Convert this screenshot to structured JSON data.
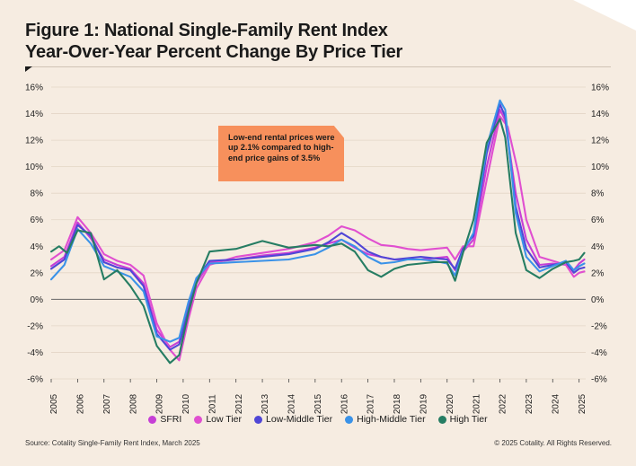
{
  "title": {
    "line1": "Figure 1: National Single-Family Rent Index",
    "line2": "Year-Over-Year Percent Change By Price Tier"
  },
  "callout": "Low-end rental prices were up 2.1% compared to high-end price gains of 3.5%",
  "source": "Source: Cotality Single-Family Rent Index, March 2025",
  "copyright": "© 2025 Cotality. All Rights Reserved.",
  "chart_data": {
    "type": "line",
    "ylim": [
      -6,
      16
    ],
    "yticks": [
      -6,
      -4,
      -2,
      0,
      2,
      4,
      6,
      8,
      10,
      12,
      14,
      16
    ],
    "ytick_labels": [
      "-6%",
      "-4%",
      "-2%",
      "0%",
      "2%",
      "4%",
      "6%",
      "8%",
      "10%",
      "12%",
      "14%",
      "16%"
    ],
    "xlim": [
      2005,
      2025.25
    ],
    "xticks": [
      2005,
      2006,
      2007,
      2008,
      2009,
      2010,
      2011,
      2012,
      2013,
      2014,
      2015,
      2016,
      2017,
      2018,
      2019,
      2020,
      2021,
      2022,
      2023,
      2024,
      2025
    ],
    "grid": "horizontal",
    "legend_position": "bottom",
    "series": [
      {
        "name": "SFRI",
        "color": "#c63fd6",
        "points": [
          [
            2005,
            2.5
          ],
          [
            2005.5,
            3.2
          ],
          [
            2006,
            5.8
          ],
          [
            2006.5,
            4.6
          ],
          [
            2007,
            3.0
          ],
          [
            2007.5,
            2.6
          ],
          [
            2008,
            2.3
          ],
          [
            2008.5,
            1.2
          ],
          [
            2009,
            -2.3
          ],
          [
            2009.5,
            -3.6
          ],
          [
            2009.85,
            -3.2
          ],
          [
            2010.2,
            -0.5
          ],
          [
            2010.5,
            1.2
          ],
          [
            2011,
            2.8
          ],
          [
            2012,
            3.0
          ],
          [
            2013,
            3.3
          ],
          [
            2014,
            3.5
          ],
          [
            2015,
            3.9
          ],
          [
            2015.5,
            4.2
          ],
          [
            2016,
            4.5
          ],
          [
            2016.5,
            3.9
          ],
          [
            2017,
            3.4
          ],
          [
            2017.5,
            3.2
          ],
          [
            2018,
            3.0
          ],
          [
            2018.5,
            3.0
          ],
          [
            2019,
            3.0
          ],
          [
            2019.5,
            3.1
          ],
          [
            2020,
            3.2
          ],
          [
            2020.3,
            2.2
          ],
          [
            2020.6,
            3.6
          ],
          [
            2021,
            4.5
          ],
          [
            2021.5,
            10.0
          ],
          [
            2022,
            14.3
          ],
          [
            2022.2,
            13.5
          ],
          [
            2022.6,
            8.0
          ],
          [
            2023,
            4.5
          ],
          [
            2023.5,
            2.6
          ],
          [
            2024,
            2.7
          ],
          [
            2024.5,
            2.6
          ],
          [
            2024.8,
            2.2
          ],
          [
            2025,
            2.7
          ],
          [
            2025.2,
            3.0
          ]
        ]
      },
      {
        "name": "Low Tier",
        "color": "#e04fd0",
        "points": [
          [
            2005,
            3.0
          ],
          [
            2005.5,
            3.7
          ],
          [
            2006,
            6.2
          ],
          [
            2006.5,
            5.0
          ],
          [
            2007,
            3.4
          ],
          [
            2007.5,
            2.9
          ],
          [
            2008,
            2.6
          ],
          [
            2008.5,
            1.8
          ],
          [
            2009,
            -1.8
          ],
          [
            2009.5,
            -3.8
          ],
          [
            2009.85,
            -4.6
          ],
          [
            2010.2,
            -1.5
          ],
          [
            2010.5,
            0.8
          ],
          [
            2011,
            2.6
          ],
          [
            2012,
            3.2
          ],
          [
            2013,
            3.5
          ],
          [
            2014,
            3.8
          ],
          [
            2015,
            4.3
          ],
          [
            2015.5,
            4.8
          ],
          [
            2016,
            5.5
          ],
          [
            2016.5,
            5.2
          ],
          [
            2017,
            4.6
          ],
          [
            2017.5,
            4.1
          ],
          [
            2018,
            4.0
          ],
          [
            2018.5,
            3.8
          ],
          [
            2019,
            3.7
          ],
          [
            2019.5,
            3.8
          ],
          [
            2020,
            3.9
          ],
          [
            2020.3,
            3.0
          ],
          [
            2020.6,
            4.0
          ],
          [
            2021,
            4.0
          ],
          [
            2021.5,
            9.0
          ],
          [
            2022,
            13.8
          ],
          [
            2022.3,
            13.0
          ],
          [
            2022.7,
            9.5
          ],
          [
            2023,
            6.0
          ],
          [
            2023.5,
            3.2
          ],
          [
            2024,
            2.9
          ],
          [
            2024.5,
            2.6
          ],
          [
            2024.8,
            1.7
          ],
          [
            2025,
            2.0
          ],
          [
            2025.2,
            2.1
          ]
        ]
      },
      {
        "name": "Low-Middle Tier",
        "color": "#5046d6",
        "points": [
          [
            2005,
            2.3
          ],
          [
            2005.5,
            3.0
          ],
          [
            2006,
            5.6
          ],
          [
            2006.5,
            4.8
          ],
          [
            2007,
            2.8
          ],
          [
            2007.5,
            2.4
          ],
          [
            2008,
            2.2
          ],
          [
            2008.5,
            1.0
          ],
          [
            2009,
            -2.6
          ],
          [
            2009.5,
            -3.8
          ],
          [
            2009.85,
            -3.4
          ],
          [
            2010.2,
            -0.8
          ],
          [
            2010.5,
            1.5
          ],
          [
            2011,
            2.9
          ],
          [
            2012,
            3.0
          ],
          [
            2013,
            3.2
          ],
          [
            2014,
            3.4
          ],
          [
            2015,
            3.8
          ],
          [
            2015.5,
            4.3
          ],
          [
            2016,
            5.0
          ],
          [
            2016.5,
            4.4
          ],
          [
            2017,
            3.6
          ],
          [
            2017.5,
            3.2
          ],
          [
            2018,
            3.0
          ],
          [
            2018.5,
            3.1
          ],
          [
            2019,
            3.2
          ],
          [
            2019.5,
            3.1
          ],
          [
            2020,
            3.0
          ],
          [
            2020.3,
            2.3
          ],
          [
            2020.6,
            3.8
          ],
          [
            2021,
            4.8
          ],
          [
            2021.5,
            11.0
          ],
          [
            2022,
            14.7
          ],
          [
            2022.2,
            13.8
          ],
          [
            2022.6,
            7.0
          ],
          [
            2023,
            3.8
          ],
          [
            2023.5,
            2.4
          ],
          [
            2024,
            2.6
          ],
          [
            2024.5,
            2.8
          ],
          [
            2024.8,
            2.0
          ],
          [
            2025,
            2.3
          ],
          [
            2025.2,
            2.4
          ]
        ]
      },
      {
        "name": "High-Middle Tier",
        "color": "#3a92e8",
        "points": [
          [
            2005,
            1.5
          ],
          [
            2005.5,
            2.6
          ],
          [
            2006,
            5.3
          ],
          [
            2006.5,
            4.2
          ],
          [
            2007,
            2.5
          ],
          [
            2007.5,
            2.1
          ],
          [
            2008,
            1.7
          ],
          [
            2008.5,
            0.6
          ],
          [
            2009,
            -2.8
          ],
          [
            2009.5,
            -3.2
          ],
          [
            2009.85,
            -2.9
          ],
          [
            2010.2,
            -0.2
          ],
          [
            2010.5,
            1.6
          ],
          [
            2011,
            2.7
          ],
          [
            2012,
            2.8
          ],
          [
            2013,
            2.9
          ],
          [
            2014,
            3.0
          ],
          [
            2015,
            3.4
          ],
          [
            2015.5,
            3.9
          ],
          [
            2016,
            4.5
          ],
          [
            2016.5,
            4.0
          ],
          [
            2017,
            3.2
          ],
          [
            2017.5,
            2.7
          ],
          [
            2018,
            2.8
          ],
          [
            2018.5,
            3.0
          ],
          [
            2019,
            3.0
          ],
          [
            2019.5,
            2.9
          ],
          [
            2020,
            2.7
          ],
          [
            2020.3,
            1.8
          ],
          [
            2020.6,
            3.6
          ],
          [
            2021,
            5.0
          ],
          [
            2021.5,
            11.5
          ],
          [
            2022,
            15.0
          ],
          [
            2022.2,
            14.3
          ],
          [
            2022.6,
            6.5
          ],
          [
            2023,
            3.2
          ],
          [
            2023.5,
            2.1
          ],
          [
            2024,
            2.5
          ],
          [
            2024.5,
            2.9
          ],
          [
            2024.8,
            2.2
          ],
          [
            2025,
            2.5
          ],
          [
            2025.2,
            2.7
          ]
        ]
      },
      {
        "name": "High Tier",
        "color": "#267d63",
        "points": [
          [
            2005,
            3.6
          ],
          [
            2005.3,
            4.0
          ],
          [
            2005.6,
            3.5
          ],
          [
            2006,
            5.2
          ],
          [
            2006.5,
            5.0
          ],
          [
            2007,
            1.5
          ],
          [
            2007.5,
            2.2
          ],
          [
            2008,
            1.0
          ],
          [
            2008.5,
            -0.5
          ],
          [
            2009,
            -3.5
          ],
          [
            2009.5,
            -4.8
          ],
          [
            2009.85,
            -4.2
          ],
          [
            2010.2,
            -1.0
          ],
          [
            2010.5,
            1.2
          ],
          [
            2011,
            3.6
          ],
          [
            2012,
            3.8
          ],
          [
            2013,
            4.4
          ],
          [
            2014,
            3.9
          ],
          [
            2015,
            4.1
          ],
          [
            2015.5,
            4.0
          ],
          [
            2016,
            4.2
          ],
          [
            2016.5,
            3.6
          ],
          [
            2017,
            2.2
          ],
          [
            2017.5,
            1.7
          ],
          [
            2018,
            2.3
          ],
          [
            2018.5,
            2.6
          ],
          [
            2019,
            2.7
          ],
          [
            2019.5,
            2.8
          ],
          [
            2020,
            2.8
          ],
          [
            2020.3,
            1.4
          ],
          [
            2020.6,
            3.5
          ],
          [
            2021,
            6.0
          ],
          [
            2021.5,
            11.8
          ],
          [
            2022,
            13.6
          ],
          [
            2022.2,
            12.2
          ],
          [
            2022.6,
            5.0
          ],
          [
            2023,
            2.2
          ],
          [
            2023.5,
            1.6
          ],
          [
            2024,
            2.3
          ],
          [
            2024.5,
            2.8
          ],
          [
            2024.8,
            2.9
          ],
          [
            2025,
            3.0
          ],
          [
            2025.2,
            3.5
          ]
        ]
      }
    ]
  }
}
